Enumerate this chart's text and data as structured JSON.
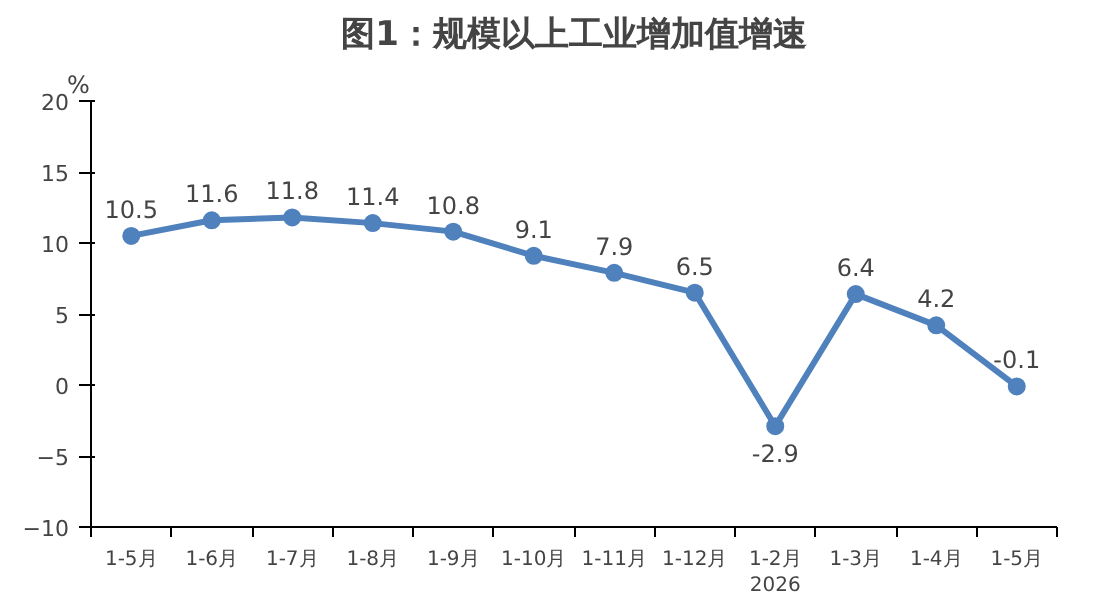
{
  "chart_data": {
    "type": "line",
    "title": "图1：规模以上工业增加值增速",
    "ylabel": "%",
    "categories": [
      "1-5月",
      "1-6月",
      "1-7月",
      "1-8月",
      "1-9月",
      "1-10月",
      "1-11月",
      "1-12月",
      "1-2月\n2026",
      "1-3月",
      "1-4月",
      "1-5月"
    ],
    "series": [
      {
        "color": "#4f81bd",
        "values": [
          10.5,
          11.6,
          11.8,
          11.4,
          10.8,
          9.1,
          7.9,
          6.5,
          -2.9,
          6.4,
          4.2,
          -0.1
        ]
      }
    ],
    "ylim": [
      -10,
      20
    ],
    "yticks": [
      -10,
      -5,
      0,
      5,
      10,
      15,
      20
    ],
    "data_labels": true,
    "marker": "circle",
    "line_style": "solid"
  }
}
